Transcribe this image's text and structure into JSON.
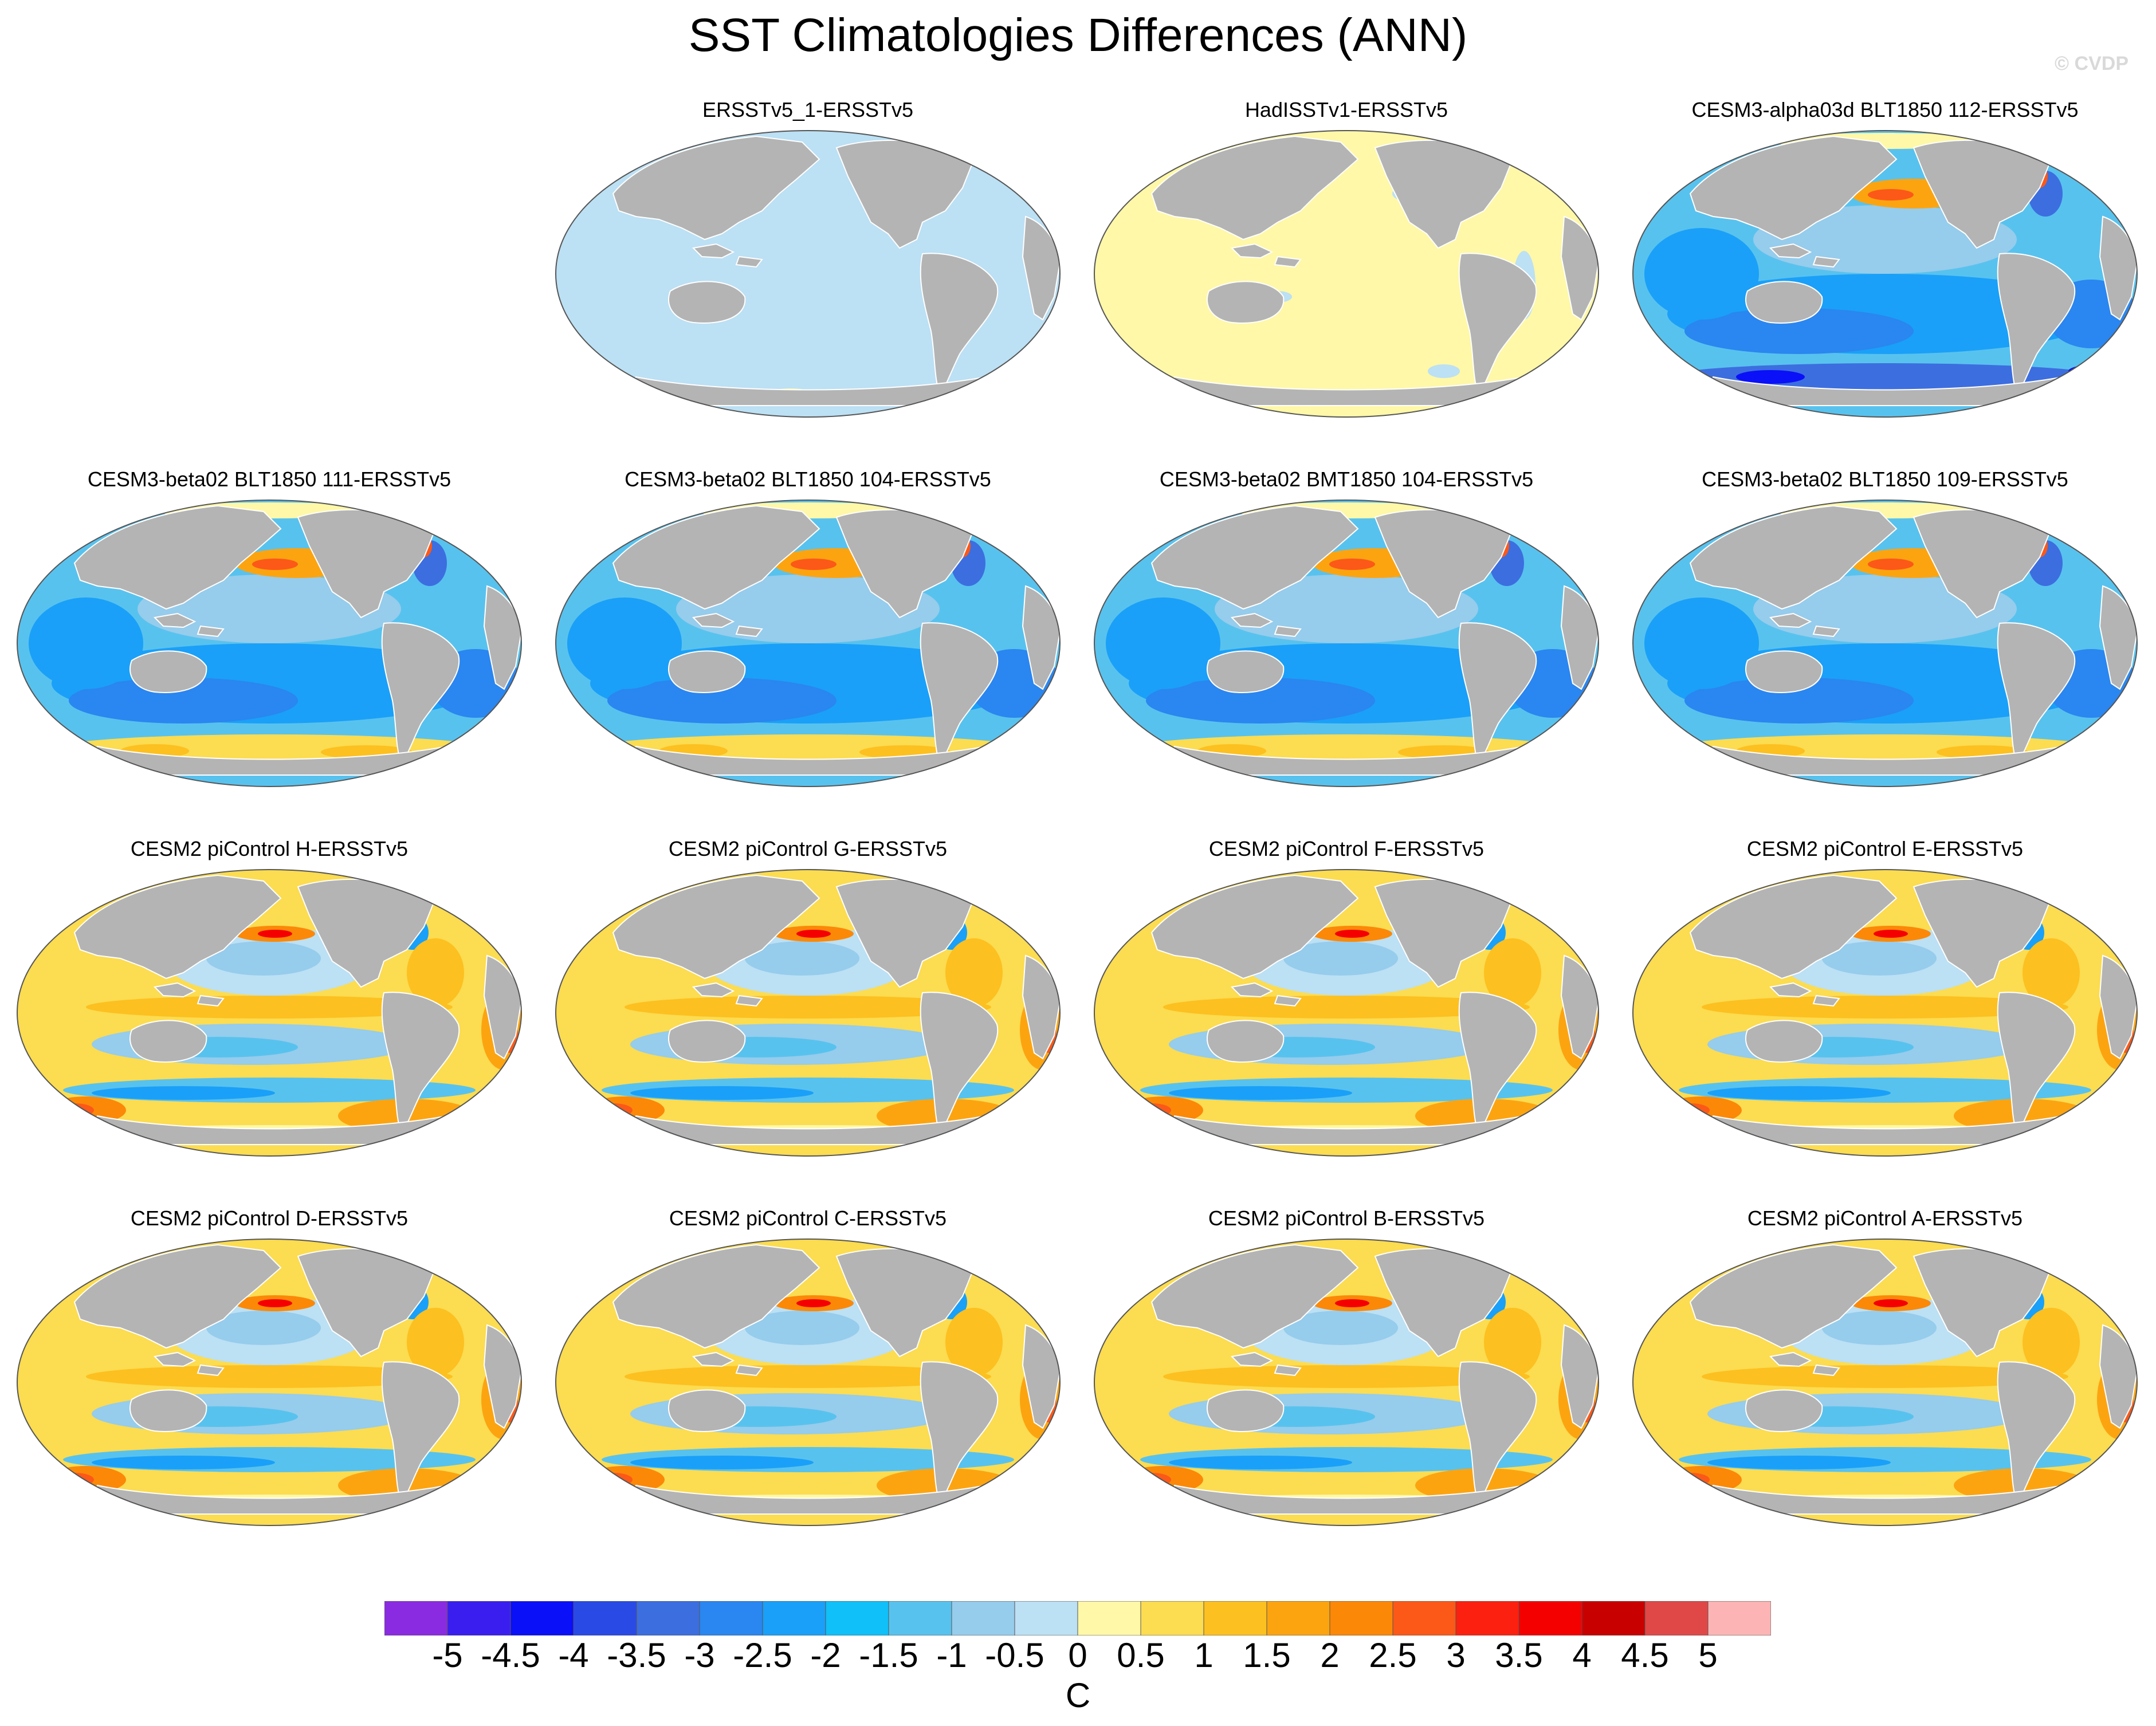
{
  "title": "SST Climatologies Differences (ANN)",
  "watermark": "© CVDP",
  "panels": [
    {
      "title": "ERSSTv5_1-ERSSTv5",
      "pattern": "uniform-cool"
    },
    {
      "title": "HadISSTv1-ERSSTv5",
      "pattern": "uniform-warm"
    },
    {
      "title": "CESM3-alpha03d BLT1850 112-ERSSTv5",
      "pattern": "cool-bias"
    },
    {
      "title": "CESM3-beta02 BLT1850 111-ERSSTv5",
      "pattern": "cool-bias-mild"
    },
    {
      "title": "CESM3-beta02 BLT1850 104-ERSSTv5",
      "pattern": "cool-bias-mild"
    },
    {
      "title": "CESM3-beta02 BMT1850 104-ERSSTv5",
      "pattern": "cool-bias-mild"
    },
    {
      "title": "CESM3-beta02 BLT1850 109-ERSSTv5",
      "pattern": "cool-bias-mild"
    },
    {
      "title": "CESM2 piControl H-ERSSTv5",
      "pattern": "warm-bias"
    },
    {
      "title": "CESM2 piControl G-ERSSTv5",
      "pattern": "warm-bias"
    },
    {
      "title": "CESM2 piControl F-ERSSTv5",
      "pattern": "warm-bias"
    },
    {
      "title": "CESM2 piControl E-ERSSTv5",
      "pattern": "warm-bias"
    },
    {
      "title": "CESM2 piControl D-ERSSTv5",
      "pattern": "warm-bias"
    },
    {
      "title": "CESM2 piControl C-ERSSTv5",
      "pattern": "warm-bias"
    },
    {
      "title": "CESM2 piControl B-ERSSTv5",
      "pattern": "warm-bias"
    },
    {
      "title": "CESM2 piControl A-ERSSTv5",
      "pattern": "warm-bias"
    }
  ],
  "colorbar": {
    "colors": [
      "#8a2be2",
      "#3a1ef0",
      "#0a10f8",
      "#2a4ae6",
      "#3c6ee0",
      "#2a86f0",
      "#1aa0f8",
      "#10c0f8",
      "#58c2ee",
      "#96ccec",
      "#bce0f4",
      "#fef8a8",
      "#fcdc50",
      "#fcc020",
      "#fca410",
      "#fc8808",
      "#fc5818",
      "#fc2010",
      "#f40000",
      "#c80000",
      "#e04848",
      "#fcb4b4"
    ],
    "labels": [
      "-5",
      "-4.5",
      "-4",
      "-3.5",
      "-3",
      "-2.5",
      "-2",
      "-1.5",
      "-1",
      "-0.5",
      "0",
      "0.5",
      "1",
      "1.5",
      "2",
      "2.5",
      "3",
      "3.5",
      "4",
      "4.5",
      "5"
    ],
    "units": "C"
  }
}
